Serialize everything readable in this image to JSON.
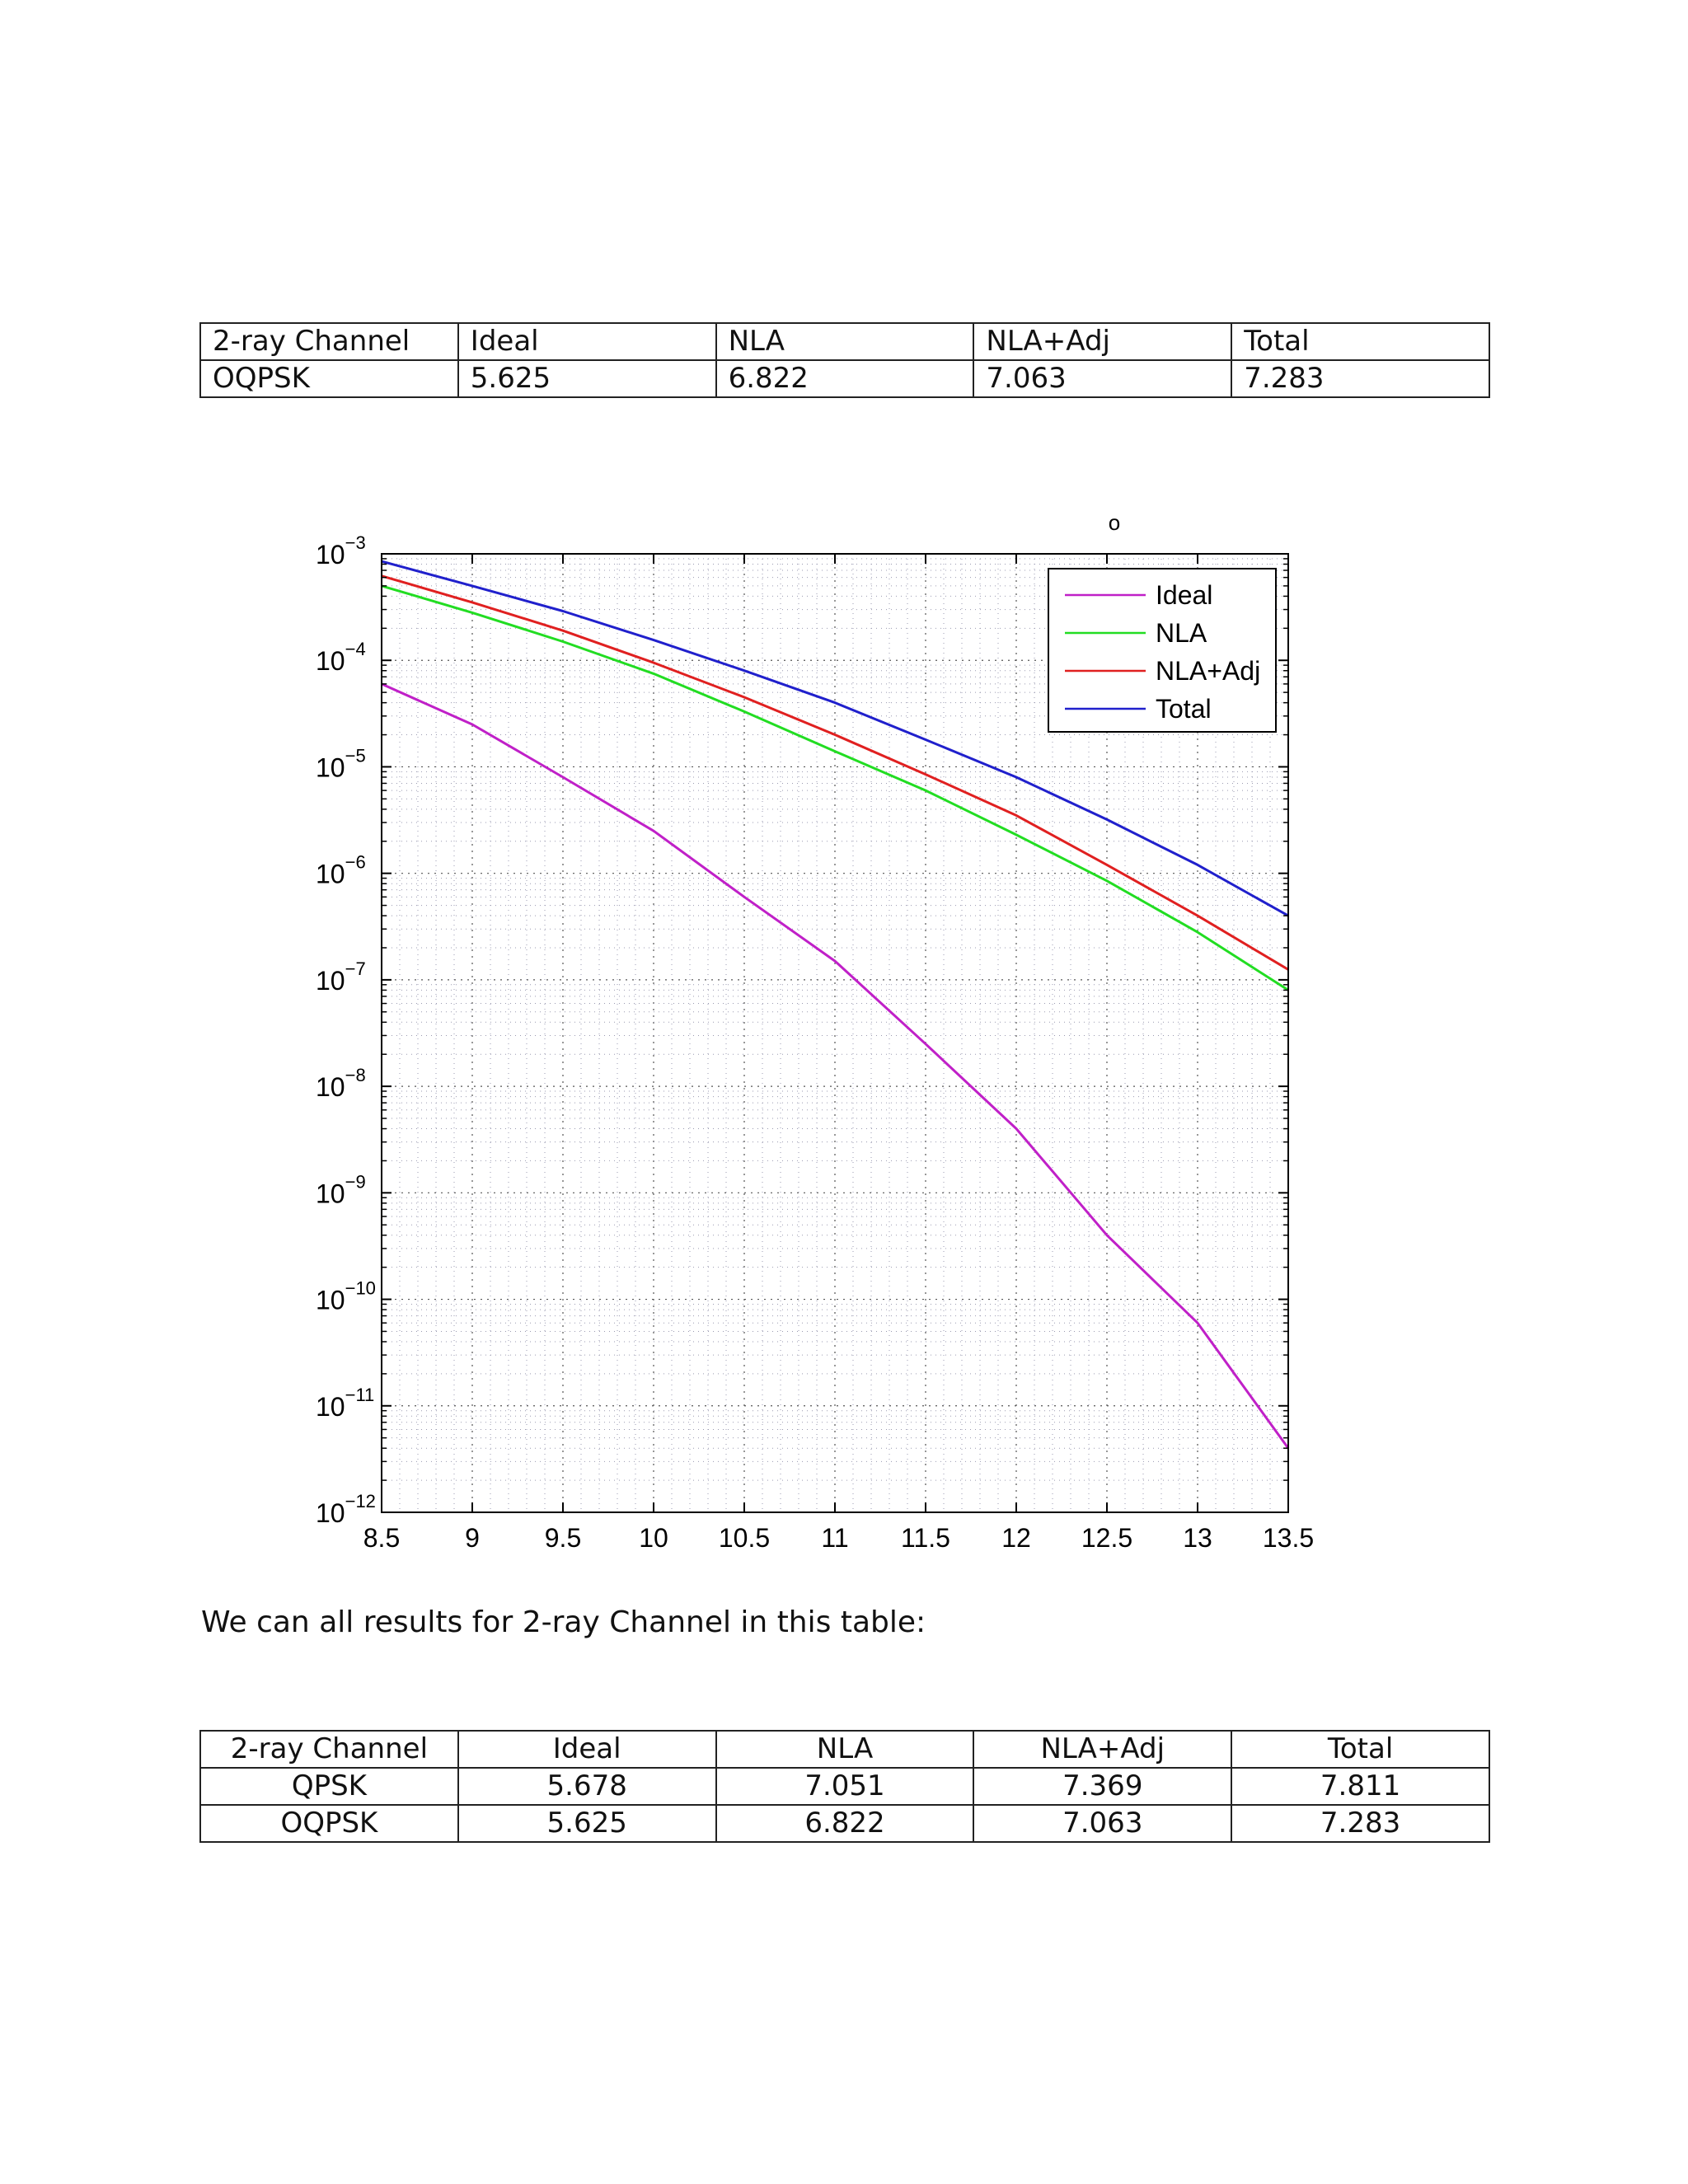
{
  "table_top": {
    "rows": [
      [
        "2-ray Channel",
        "Ideal",
        "NLA",
        "NLA+Adj",
        "Total"
      ],
      [
        "OQPSK",
        "5.625",
        "6.822",
        "7.063",
        "7.283"
      ]
    ]
  },
  "chart_marker": "o",
  "chart_data": {
    "type": "line",
    "title": "",
    "xlabel": "",
    "ylabel": "",
    "xlim": [
      8.5,
      13.5
    ],
    "ylim": [
      1e-12,
      0.001
    ],
    "yscale": "log",
    "grid": true,
    "legend_position": "top-right",
    "x_ticks": [
      "8.5",
      "9",
      "9.5",
      "10",
      "10.5",
      "11",
      "11.5",
      "12",
      "12.5",
      "13",
      "13.5"
    ],
    "y_ticks": [
      {
        "base": "10",
        "exp": "−3"
      },
      {
        "base": "10",
        "exp": "−4"
      },
      {
        "base": "10",
        "exp": "−5"
      },
      {
        "base": "10",
        "exp": "−6"
      },
      {
        "base": "10",
        "exp": "−7"
      },
      {
        "base": "10",
        "exp": "−8"
      },
      {
        "base": "10",
        "exp": "−9"
      },
      {
        "base": "10",
        "exp": "−10"
      },
      {
        "base": "10",
        "exp": "−11"
      },
      {
        "base": "10",
        "exp": "−12"
      }
    ],
    "x": [
      8.5,
      9,
      9.5,
      10,
      10.5,
      11,
      11.5,
      12,
      12.5,
      13,
      13.5
    ],
    "series": [
      {
        "name": "Ideal",
        "color": "#c020c8",
        "values": [
          6e-05,
          2.5e-05,
          8e-06,
          2.5e-06,
          6e-07,
          1.5e-07,
          2.5e-08,
          4e-09,
          4e-10,
          6e-11,
          4e-12
        ]
      },
      {
        "name": "NLA",
        "color": "#22dd22",
        "values": [
          0.0005,
          0.00028,
          0.00015,
          7.5e-05,
          3.3e-05,
          1.4e-05,
          6e-06,
          2.3e-06,
          8.5e-07,
          2.8e-07,
          8e-08
        ]
      },
      {
        "name": "NLA+Adj",
        "color": "#e02020",
        "values": [
          0.00062,
          0.00035,
          0.00019,
          9.5e-05,
          4.5e-05,
          2e-05,
          8.5e-06,
          3.5e-06,
          1.2e-06,
          4e-07,
          1.25e-07
        ]
      },
      {
        "name": "Total",
        "color": "#2020cc",
        "values": [
          0.00085,
          0.0005,
          0.00029,
          0.000155,
          8e-05,
          4e-05,
          1.8e-05,
          8e-06,
          3.2e-06,
          1.2e-06,
          4e-07
        ]
      }
    ]
  },
  "sentence": "We can all results for 2-ray Channel in this table:",
  "table_bottom": {
    "rows": [
      [
        "2-ray Channel",
        "Ideal",
        "NLA",
        "NLA+Adj",
        "Total"
      ],
      [
        "QPSK",
        "5.678",
        "7.051",
        "7.369",
        "7.811"
      ],
      [
        "OQPSK",
        "5.625",
        "6.822",
        "7.063",
        "7.283"
      ]
    ]
  }
}
